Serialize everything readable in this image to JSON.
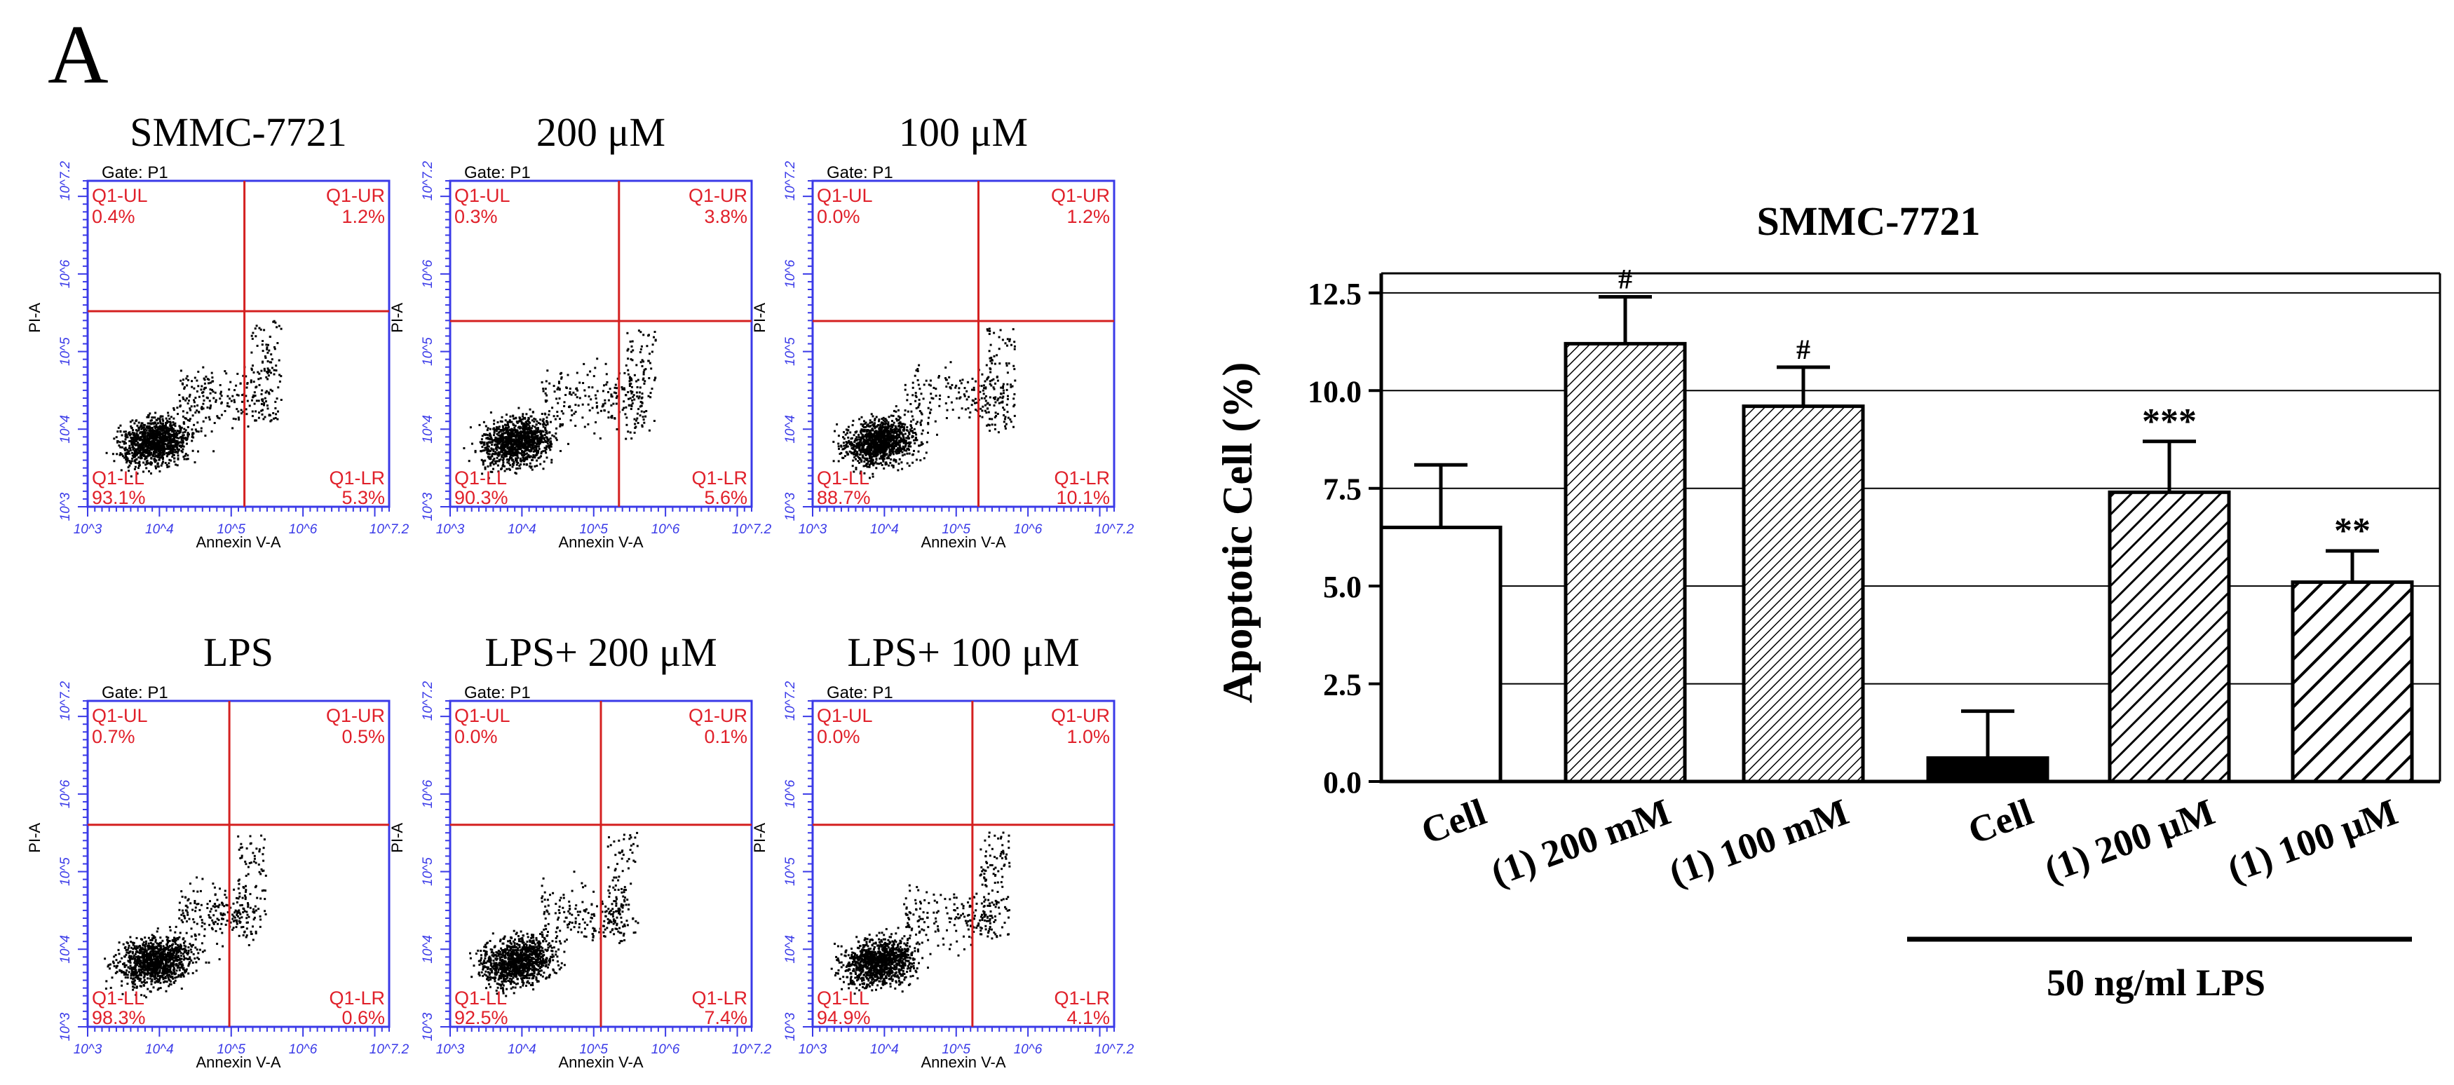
{
  "panel_letter": "A",
  "flow": {
    "gate": "Gate: P1",
    "y_axis_label": "PI-A",
    "x_axis_label": "Annexin V-A",
    "tick_labels": [
      "10^3",
      "10^4",
      "10^5",
      "10^6",
      "10^7.2"
    ],
    "quadrant_names": [
      "Q1-UL",
      "Q1-UR",
      "Q1-LL",
      "Q1-LR"
    ],
    "plots": [
      {
        "title": "SMMC-7721",
        "UL": "0.4%",
        "UR": "1.2%",
        "LL": "93.1%",
        "LR": "5.3%"
      },
      {
        "title": "200 μM",
        "UL": "0.3%",
        "UR": "3.8%",
        "LL": "90.3%",
        "LR": "5.6%"
      },
      {
        "title": "100 μM",
        "UL": "0.0%",
        "UR": "1.2%",
        "LL": "88.7%",
        "LR": "10.1%"
      },
      {
        "title": "LPS",
        "UL": "0.7%",
        "UR": "0.5%",
        "LL": "98.3%",
        "LR": "0.6%"
      },
      {
        "title": "LPS+ 200 μM",
        "UL": "0.0%",
        "UR": "0.1%",
        "LL": "92.5%",
        "LR": "7.4%"
      },
      {
        "title": "LPS+ 100 μM",
        "UL": "0.0%",
        "UR": "1.0%",
        "LL": "94.9%",
        "LR": "4.1%"
      }
    ]
  },
  "chart_data": {
    "type": "bar",
    "title": "SMMC-7721",
    "ylabel": "Apoptotic Cell (%)",
    "xlabel": "",
    "ylim": [
      0,
      13
    ],
    "yticks": [
      "0.0",
      "2.5",
      "5.0",
      "7.5",
      "10.0",
      "12.5"
    ],
    "grid": true,
    "categories": [
      "Cell",
      "(1) 200 mM",
      "(1) 100 mM",
      "Cell",
      "(1) 200 μM",
      "(1) 100 μM"
    ],
    "values": [
      6.5,
      11.2,
      9.6,
      0.6,
      7.4,
      5.1
    ],
    "errors": [
      1.6,
      1.2,
      1.0,
      1.2,
      1.3,
      0.8
    ],
    "significance": [
      "",
      "#",
      "#",
      "",
      "***",
      "**"
    ],
    "fills": [
      "white",
      "hatch-dense",
      "hatch-dense",
      "solid-black",
      "hatch-medium",
      "hatch-wide"
    ],
    "group_label": "50 ng/ml LPS"
  }
}
